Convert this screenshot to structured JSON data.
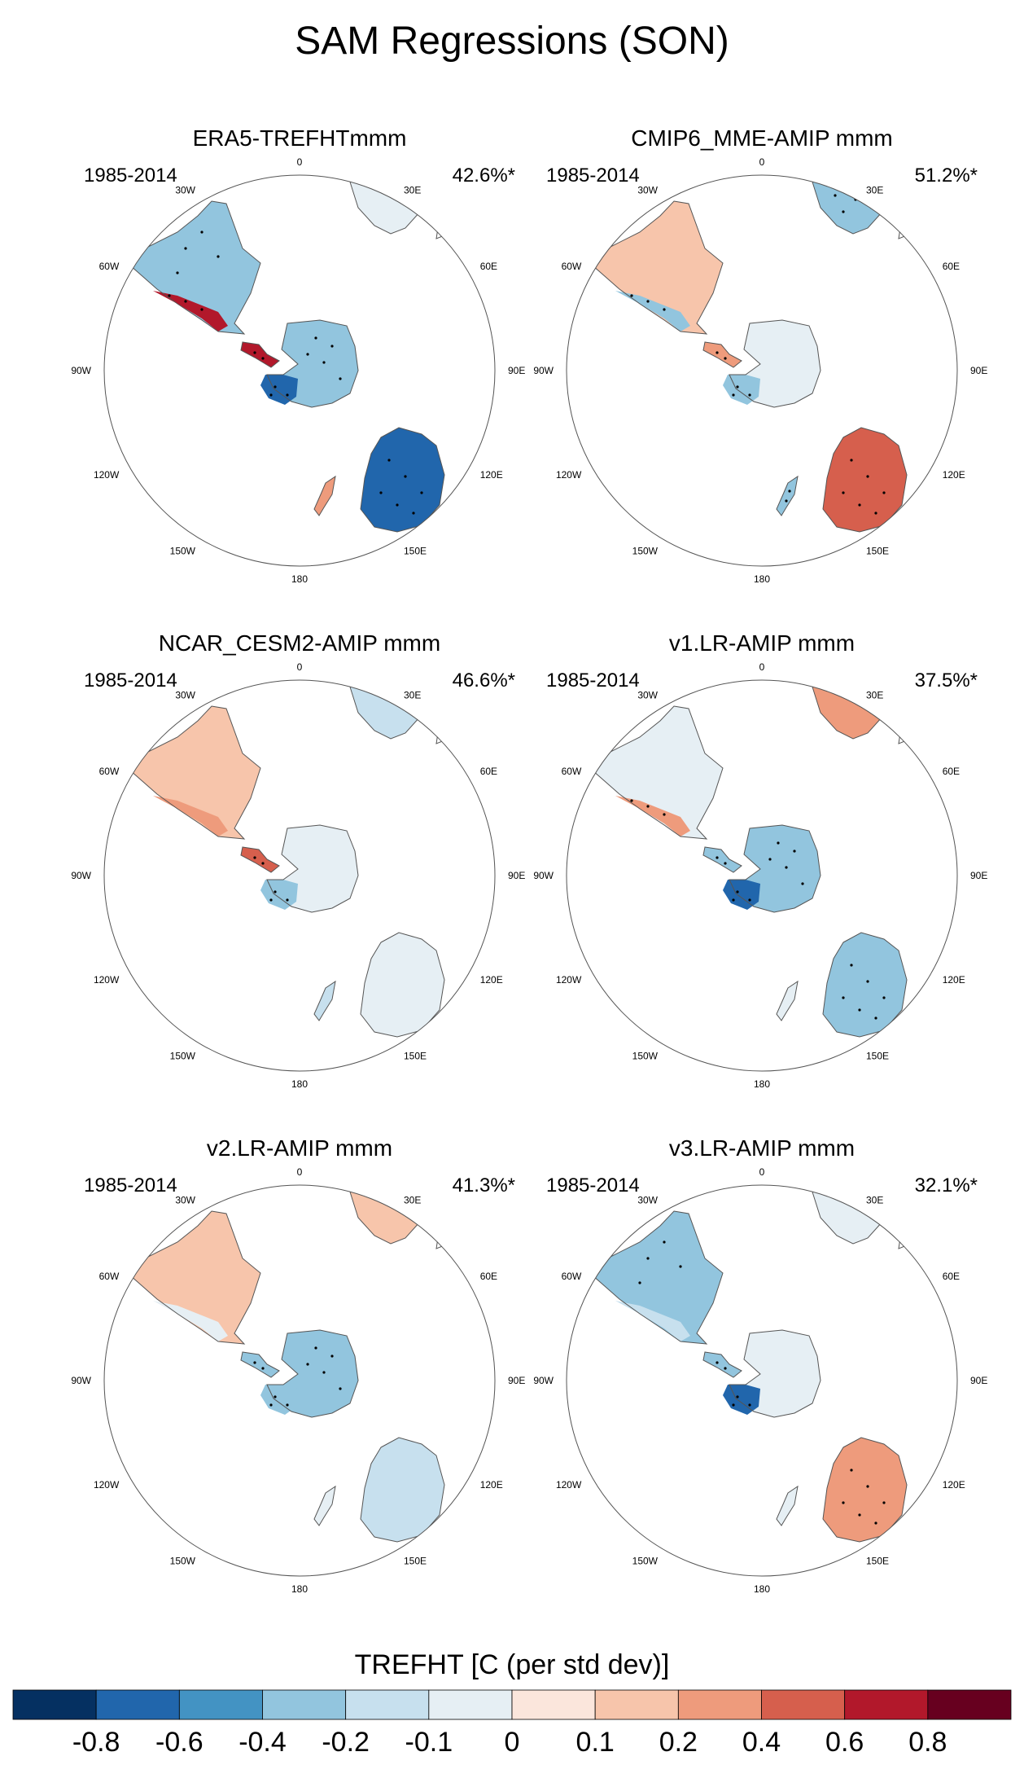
{
  "title": "SAM Regressions (SON)",
  "longitude_labels": [
    "0",
    "30E",
    "60E",
    "90E",
    "120E",
    "150E",
    "180",
    "150W",
    "120W",
    "90W",
    "60W",
    "30W"
  ],
  "panels": [
    {
      "title": "ERA5-TREFHTmmm",
      "period": "1985-2014",
      "variance": "42.6%*",
      "patterns": [
        {
          "region": "south-america",
          "value": -0.3
        },
        {
          "region": "patagonia",
          "value": 0.7
        },
        {
          "region": "africa",
          "value": -0.1
        },
        {
          "region": "australia",
          "value": -0.7
        },
        {
          "region": "antarctica-east",
          "value": -0.4
        },
        {
          "region": "antarctic-peninsula",
          "value": 0.6
        },
        {
          "region": "west-antarctica",
          "value": -0.8
        },
        {
          "region": "new-zealand",
          "value": 0.2
        }
      ]
    },
    {
      "title": "CMIP6_MME-AMIP  mmm",
      "period": "1985-2014",
      "variance": "51.2%*",
      "patterns": [
        {
          "region": "south-america",
          "value": 0.1
        },
        {
          "region": "patagonia",
          "value": -0.3
        },
        {
          "region": "africa",
          "value": -0.3
        },
        {
          "region": "australia",
          "value": 0.4
        },
        {
          "region": "antarctica-east",
          "value": -0.1
        },
        {
          "region": "antarctic-peninsula",
          "value": 0.3
        },
        {
          "region": "west-antarctica",
          "value": -0.3
        },
        {
          "region": "new-zealand",
          "value": -0.3
        }
      ]
    },
    {
      "title": "NCAR_CESM2-AMIP  mmm",
      "period": "1985-2014",
      "variance": "46.6%*",
      "patterns": [
        {
          "region": "south-america",
          "value": 0.1
        },
        {
          "region": "patagonia",
          "value": 0.2
        },
        {
          "region": "africa",
          "value": -0.2
        },
        {
          "region": "australia",
          "value": -0.1
        },
        {
          "region": "antarctica-east",
          "value": -0.1
        },
        {
          "region": "antarctic-peninsula",
          "value": 0.4
        },
        {
          "region": "west-antarctica",
          "value": -0.3
        },
        {
          "region": "new-zealand",
          "value": -0.2
        }
      ]
    },
    {
      "title": "v1.LR-AMIP  mmm",
      "period": "1985-2014",
      "variance": "37.5%*",
      "patterns": [
        {
          "region": "south-america",
          "value": -0.1
        },
        {
          "region": "patagonia",
          "value": 0.3
        },
        {
          "region": "africa",
          "value": 0.2
        },
        {
          "region": "australia",
          "value": -0.3
        },
        {
          "region": "antarctica-east",
          "value": -0.3
        },
        {
          "region": "antarctic-peninsula",
          "value": -0.4
        },
        {
          "region": "west-antarctica",
          "value": -0.7
        },
        {
          "region": "new-zealand",
          "value": -0.05
        }
      ]
    },
    {
      "title": "v2.LR-AMIP  mmm",
      "period": "1985-2014",
      "variance": "41.3%*",
      "patterns": [
        {
          "region": "south-america",
          "value": 0.1
        },
        {
          "region": "patagonia",
          "value": -0.1
        },
        {
          "region": "africa",
          "value": 0.1
        },
        {
          "region": "australia",
          "value": -0.2
        },
        {
          "region": "antarctica-east",
          "value": -0.4
        },
        {
          "region": "antarctic-peninsula",
          "value": -0.3
        },
        {
          "region": "west-antarctica",
          "value": -0.4
        },
        {
          "region": "new-zealand",
          "value": -0.05
        }
      ]
    },
    {
      "title": "v3.LR-AMIP  mmm",
      "period": "1985-2014",
      "variance": "32.1%*",
      "patterns": [
        {
          "region": "south-america",
          "value": -0.3
        },
        {
          "region": "patagonia",
          "value": -0.2
        },
        {
          "region": "africa",
          "value": -0.1
        },
        {
          "region": "australia",
          "value": 0.3
        },
        {
          "region": "antarctica-east",
          "value": -0.05
        },
        {
          "region": "antarctic-peninsula",
          "value": -0.4
        },
        {
          "region": "west-antarctica",
          "value": -0.8
        },
        {
          "region": "new-zealand",
          "value": -0.05
        }
      ]
    }
  ],
  "colorbar": {
    "title": "TREFHT [C (per std dev)]",
    "colors": [
      "#053061",
      "#2166ac",
      "#4393c3",
      "#92c5de",
      "#c7e0ee",
      "#e6eff4",
      "#fbe6dc",
      "#f7c5ab",
      "#ee9b7c",
      "#d65f4d",
      "#b2182b",
      "#67001f"
    ],
    "tick_labels": [
      "-0.8",
      "-0.6",
      "-0.4",
      "-0.2",
      "-0.1",
      "0",
      "0.1",
      "0.2",
      "0.4",
      "0.6",
      "0.8"
    ],
    "levels": [
      -0.8,
      -0.6,
      -0.4,
      -0.2,
      -0.1,
      0,
      0.1,
      0.2,
      0.4,
      0.6,
      0.8
    ]
  }
}
